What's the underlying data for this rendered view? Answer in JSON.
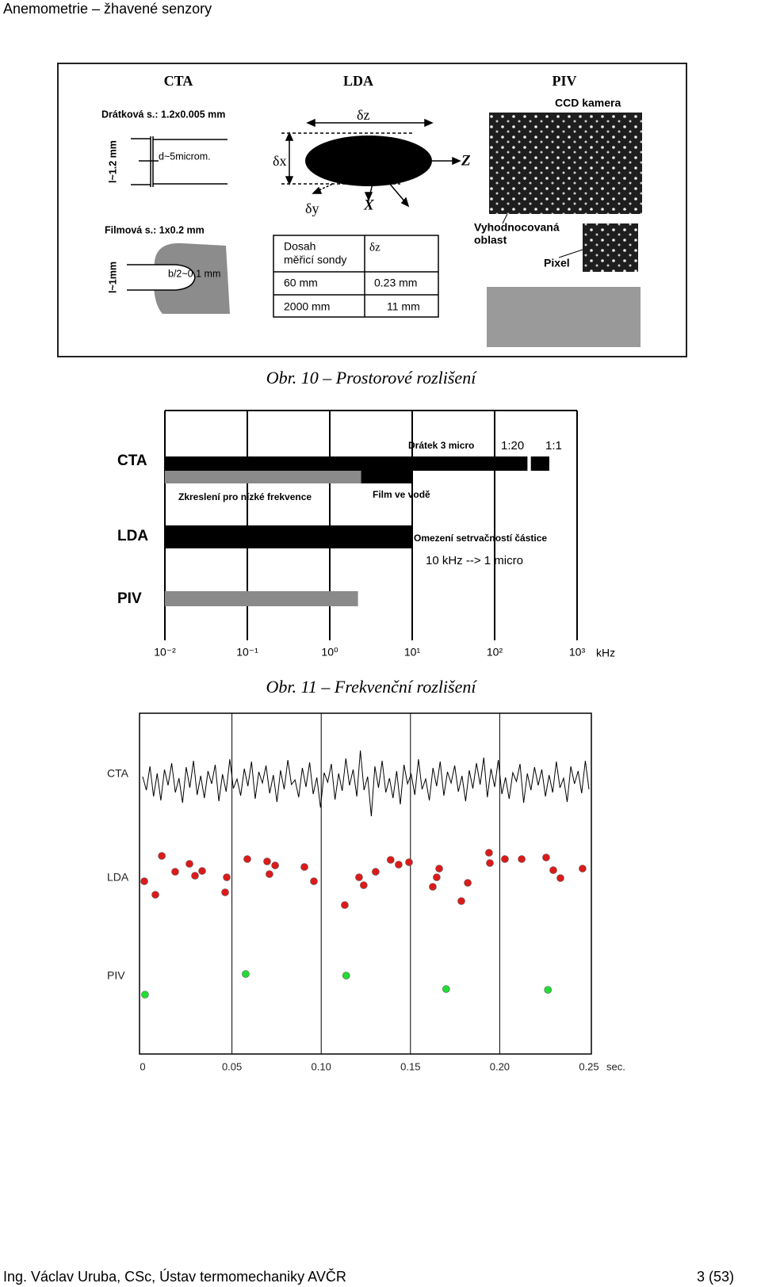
{
  "header": {
    "title": "Anemometrie – žhavené senzory"
  },
  "figure1": {
    "headings": [
      "CTA",
      "LDA",
      "PIV"
    ],
    "wire": "Drátková s.: 1.2x0.005 mm",
    "wire_length": "l~1.2 mm",
    "wire_diameter": "d~5microm.",
    "film": "Filmová s.: 1x0.2 mm",
    "film_length": "l~1mm",
    "film_width": "b/2~0.1 mm",
    "delta_z": "δz",
    "delta_x": "δx",
    "delta_y": "δy",
    "axis_x": "X",
    "axis_z": "Z",
    "table": {
      "rows": [
        [
          [
            "Dosah",
            "měřicí sondy"
          ],
          "δz"
        ],
        [
          "60 mm",
          "0.23 mm"
        ],
        [
          "2000 mm",
          "11 mm"
        ]
      ]
    },
    "ccd": "CCD kamera",
    "region": [
      "Vyhodnocovaná",
      "oblast"
    ],
    "pixel": "Pixel",
    "caption": "Obr. 10 – Prostorové rozlišení"
  },
  "chart_data": [
    {
      "type": "rangebar",
      "categories": [
        "CTA",
        "LDA",
        "PIV"
      ],
      "xlog": true,
      "xlim": [
        0.01,
        1000
      ],
      "xticks": [
        {
          "value": 0.01,
          "label": "10⁻²"
        },
        {
          "value": 0.1,
          "label": "10⁻¹"
        },
        {
          "value": 1,
          "label": "10⁰"
        },
        {
          "value": 10,
          "label": "10¹"
        },
        {
          "value": 100,
          "label": "10²"
        },
        {
          "value": 1000,
          "label": "10³"
        }
      ],
      "x_unit": "kHz",
      "grid": true,
      "bars": [
        {
          "category": 0,
          "values": [
            0.01,
            250
          ],
          "color": "#000000"
        },
        {
          "category": 0,
          "values": [
            275,
            460
          ],
          "color": "#000000"
        },
        {
          "category": 0,
          "values": [
            0.01,
            2.4
          ],
          "color": "#8a8a8a"
        },
        {
          "category": 0,
          "values": [
            2.4,
            10
          ],
          "color": "#000000"
        },
        {
          "category": 1,
          "values": [
            0.01,
            10
          ],
          "color": "#000000"
        },
        {
          "category": 2,
          "values": [
            0.01,
            2.2
          ],
          "color": "#8a8a8a"
        }
      ],
      "annotations": [
        "Drátek 3 micro",
        "1:20",
        "1:1",
        "Zkreslení pro nízké frekvence",
        "Film ve vodě",
        "Omezení setrvačností částice",
        "10 kHz --> 1 micro"
      ],
      "caption": "Obr. 11 – Frekvenční rozlišení"
    },
    {
      "type": "scatter",
      "categories": [
        "CTA",
        "LDA",
        "PIV"
      ],
      "xlim": [
        0,
        0.25
      ],
      "xticks": [
        0,
        0.05,
        {
          "value": 0.1,
          "label": "0.10"
        },
        0.15,
        {
          "value": 0.2,
          "label": "0.20"
        },
        0.25
      ],
      "x_unit": "sec.",
      "grid": true,
      "signal": {
        "color": "#000000",
        "values": [
          5,
          -12,
          18,
          -20,
          9,
          -25,
          14,
          -6,
          22,
          -15,
          3,
          -28,
          17,
          -9,
          25,
          -18,
          6,
          -22,
          12,
          -4,
          20,
          -26,
          8,
          -14,
          27,
          -10,
          2,
          -19,
          15,
          -7,
          24,
          -23,
          11,
          -3,
          19,
          -16,
          7,
          -27,
          13,
          -11,
          26,
          -5,
          1,
          -21,
          16,
          -8,
          23,
          -17,
          4,
          -34,
          10,
          -2,
          21,
          -24,
          9,
          -13,
          28,
          -6,
          14,
          -20,
          38,
          -12,
          5,
          -45,
          18,
          -9,
          25,
          -15,
          3,
          -22,
          12,
          -30,
          20,
          -4,
          8,
          -18,
          27,
          -11,
          2,
          -25,
          16,
          -7,
          24,
          -19,
          11,
          -3,
          19,
          -14,
          6,
          -26,
          13,
          -10,
          22,
          -5,
          29,
          -21,
          15,
          -8,
          26,
          -17,
          4,
          -23,
          10,
          -1,
          21,
          -28,
          9,
          -12,
          17,
          -6,
          14,
          -20,
          7,
          -15,
          24,
          -9,
          3,
          -27,
          18,
          -4,
          12,
          -16,
          25,
          -11
        ]
      },
      "lda": {
        "color": "#dd1a1a",
        "x": [
          0.0009,
          0.0071,
          0.0107,
          0.0182,
          0.0262,
          0.0293,
          0.0333,
          0.0462,
          0.0471,
          0.0586,
          0.0697,
          0.071,
          0.0742,
          0.0906,
          0.0959,
          0.1132,
          0.1212,
          0.1238,
          0.1305,
          0.1389,
          0.1434,
          0.1492,
          0.1625,
          0.1647,
          0.1661,
          0.1785,
          0.1821,
          0.194,
          0.1945,
          0.2029,
          0.2123,
          0.226,
          0.23,
          0.234,
          0.2464
        ],
        "values": [
          -2,
          -19,
          30,
          10,
          20,
          5,
          11,
          -16,
          3,
          26,
          23,
          7,
          18,
          16,
          -2,
          -32,
          3,
          -7,
          10,
          25,
          19,
          22,
          -9,
          3,
          14,
          -27,
          -4,
          34,
          21,
          26,
          26,
          28,
          12,
          2,
          14
        ]
      },
      "piv": {
        "color": "#22dd33",
        "x": [
          0.0013,
          0.0577,
          0.114,
          0.17,
          0.227
        ],
        "values": [
          -15,
          11,
          9,
          -8,
          -9
        ]
      }
    }
  ],
  "footer": {
    "author": "Ing. Václav Uruba, CSc, Ústav termomechaniky AVČR",
    "page": "3 (53)"
  }
}
